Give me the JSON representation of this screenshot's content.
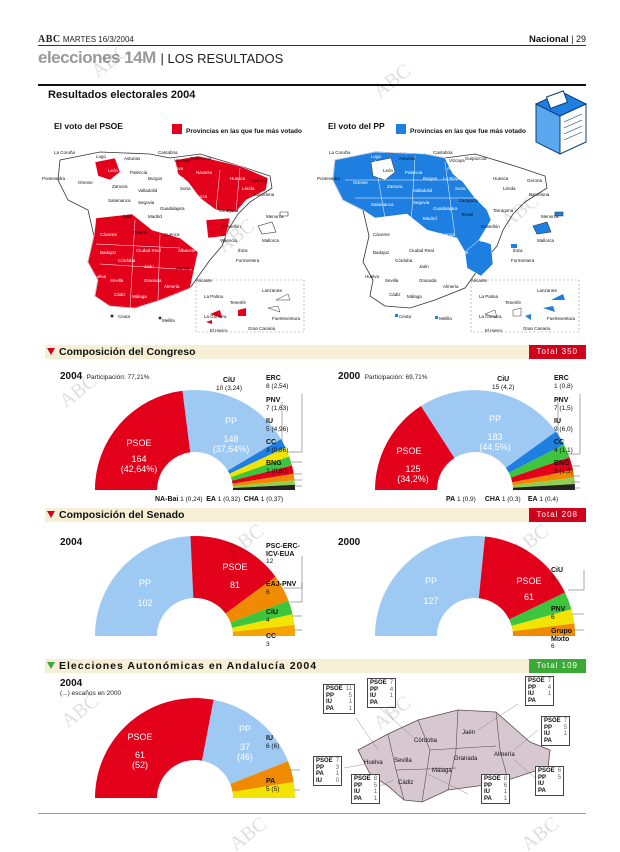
{
  "header": {
    "paper": "ABC",
    "date": "MARTES 16/3/2004",
    "section": "Nacional",
    "page": "29"
  },
  "section_title": {
    "keyword": "elecciones 14M",
    "rest": "LOS RESULTADOS"
  },
  "main_title": "Resultados electorales 2004",
  "maps": {
    "psoe": {
      "title": "El voto del PSOE",
      "legend": "Provincias en las que fue más votado",
      "color": "#e3001b"
    },
    "pp": {
      "title": "El voto del PP",
      "legend": "Provincias en las que fue más votado",
      "color": "#1e7fe0"
    },
    "places_psoe": [
      "La Coruña",
      "Lugo",
      "Asturias",
      "Cantabria",
      "Vizcaya",
      "Guipúzcoa",
      "Pontevedra",
      "Orense",
      "León",
      "Palencia",
      "Burgos",
      "Álava",
      "La Rioja",
      "Navarra",
      "Huesca",
      "Gerona",
      "Lérida",
      "Zamora",
      "Valladolid",
      "Soria",
      "Zaragoza",
      "Barcelona",
      "Tarragona",
      "Salamanca",
      "Segovia",
      "Ávila",
      "Guadalajara",
      "Madrid",
      "Teruel",
      "Castellón",
      "Cáceres",
      "Toledo",
      "Cuenca",
      "Valencia",
      "Menorca",
      "Mallorca",
      "Badajoz",
      "Ciudad Real",
      "Albacete",
      "Ibiza",
      "Formentera",
      "Huelva",
      "Córdoba",
      "Jaén",
      "Murcia",
      "Alicante",
      "Sevilla",
      "Granada",
      "Almería",
      "Cádiz",
      "Málaga",
      "Ceuta",
      "Melilla",
      "La Palma",
      "Tenerife",
      "Lanzarote",
      "Fuerteventura",
      "La Gomera",
      "El Hierro",
      "Gran Canaria"
    ],
    "places_pp": [
      "La Coruña",
      "Lugo",
      "Asturias",
      "Cantabria",
      "Vizcaya",
      "Guipúzcoa",
      "Pontevedra",
      "Orense",
      "León",
      "Palencia",
      "Burgos",
      "Álava",
      "La Rioja",
      "Navarra",
      "Huesca",
      "Gerona",
      "Lérida",
      "Zamora",
      "Valladolid",
      "Soria",
      "Zaragoza",
      "Barcelona",
      "Tarragona",
      "Salamanca",
      "Segovia",
      "Ávila",
      "Guadalajara",
      "Madrid",
      "Teruel",
      "Castellón",
      "Cáceres",
      "Toledo",
      "Cuenca",
      "Valencia",
      "Menorca",
      "Mallorca",
      "Badajoz",
      "Ciudad Real",
      "Albacete",
      "Ibiza",
      "Formentera",
      "Huelva",
      "Córdoba",
      "Jaén",
      "Murcia",
      "Alicante",
      "Sevilla",
      "Granada",
      "Almería",
      "Cádiz",
      "Málaga",
      "Ceuta",
      "Melilla",
      "La Palma",
      "Tenerife",
      "Lanzarote",
      "Fuerteventura",
      "La Gomera",
      "El Hierro",
      "Gran Canaria"
    ]
  },
  "congreso": {
    "title": "Composición del Congreso",
    "total": "Total 350",
    "y2004": {
      "year": "2004",
      "participation": "Participación: 77,21%",
      "psoe_name": "PSOE",
      "psoe_seats": "164",
      "psoe_pct": "(42,64%)",
      "pp_name": "PP",
      "pp_seats": "148",
      "pp_pct": "(37,64%)",
      "labels_right": [
        {
          "name": "CiU",
          "val": "10 (3,24)"
        },
        {
          "name": "ERC",
          "val": "8 (2,54)"
        },
        {
          "name": "PNV",
          "val": "7 (1,63)"
        },
        {
          "name": "IU",
          "val": "5 (4,96)"
        },
        {
          "name": "CC",
          "val": "3 (0,86)"
        },
        {
          "name": "BNG",
          "val": "2 (0,80)"
        }
      ],
      "labels_bottom": [
        {
          "name": "NA-Bai",
          "val": "1 (0,24)"
        },
        {
          "name": "EA",
          "val": "1 (0,32)"
        },
        {
          "name": "CHA",
          "val": "1 (0,37)"
        }
      ]
    },
    "y2000": {
      "year": "2000",
      "participation": "Participación: 69,71%",
      "psoe_name": "PSOE",
      "psoe_seats": "125",
      "psoe_pct": "(34,2%)",
      "pp_name": "PP",
      "pp_seats": "183",
      "pp_pct": "(44,5%)",
      "labels_right": [
        {
          "name": "CiU",
          "val": "15 (4,2)"
        },
        {
          "name": "ERC",
          "val": "1 (0,8)"
        },
        {
          "name": "PNV",
          "val": "7 (1,5)"
        },
        {
          "name": "IU",
          "val": "9 (6,0)"
        },
        {
          "name": "CC",
          "val": "4 (1,1)"
        },
        {
          "name": "BNG",
          "val": "3 (1,3)"
        }
      ],
      "labels_bottom": [
        {
          "name": "PA",
          "val": "1 (0,9)"
        },
        {
          "name": "CHA",
          "val": "1 (0,3)"
        },
        {
          "name": "EA",
          "val": "1 (0,4)"
        }
      ]
    }
  },
  "senado": {
    "title": "Composición del Senado",
    "total": "Total 208",
    "y2004": {
      "year": "2004",
      "pp_name": "PP",
      "pp_seats": "102",
      "psoe_name": "PSOE",
      "psoe_seats": "81",
      "labels": [
        {
          "name": "PSC-ERC-ICV-EUA",
          "val": "12"
        },
        {
          "name": "EAJ-PNV",
          "val": "6"
        },
        {
          "name": "CiU",
          "val": "4"
        },
        {
          "name": "CC",
          "val": "3"
        }
      ]
    },
    "y2000": {
      "year": "2000",
      "pp_name": "PP",
      "pp_seats": "127",
      "psoe_name": "PSOE",
      "psoe_seats": "61",
      "labels": [
        {
          "name": "CiU",
          "val": "8"
        },
        {
          "name": "PNV",
          "val": "6"
        },
        {
          "name": "Grupo Mixto",
          "val": "6"
        }
      ]
    }
  },
  "andalucia": {
    "title": "Elecciones Autonómicas en Andalucía 2004",
    "total": "Total 109",
    "year": "2004",
    "note": "(...) escaños en 2000",
    "psoe_name": "PSOE",
    "psoe_seats": "61",
    "psoe_prev": "(52)",
    "pp_name": "PP",
    "pp_seats": "37",
    "pp_prev": "(46)",
    "labels": [
      {
        "name": "IU",
        "val": "6 (6)"
      },
      {
        "name": "PA",
        "val": "5 (5)"
      }
    ],
    "provinces": [
      "Córdoba",
      "Jaén",
      "Huelva",
      "Sevilla",
      "Granada",
      "Almería",
      "Málaga",
      "Cádiz"
    ],
    "boxes": {
      "huelva_top": [
        [
          "PSOE",
          "11"
        ],
        [
          "PP",
          "5"
        ],
        [
          "IU",
          "1"
        ],
        [
          "PA",
          "1"
        ]
      ],
      "cordoba": [
        [
          "PSOE",
          "7"
        ],
        [
          "PP",
          "4"
        ],
        [
          "IU",
          "1"
        ],
        [
          "PA",
          ""
        ]
      ],
      "jaen": [
        [
          "PSOE",
          "7"
        ],
        [
          "PP",
          "4"
        ],
        [
          "IU",
          "1"
        ],
        [
          "PA",
          ""
        ]
      ],
      "granada": [
        [
          "PSOE",
          "7"
        ],
        [
          "PP",
          "5"
        ],
        [
          "IU",
          "1"
        ],
        [
          "PA",
          ""
        ]
      ],
      "almeria": [
        [
          "PSOE",
          "6"
        ],
        [
          "PP",
          "5"
        ],
        [
          "IU",
          ""
        ],
        [
          "PA",
          ""
        ]
      ],
      "huelva": [
        [
          "PSOE",
          "7"
        ],
        [
          "PP",
          "3"
        ],
        [
          "PA",
          "1"
        ],
        [
          "IU",
          "0"
        ]
      ],
      "sevilla": [
        [
          "PSOE",
          "8"
        ],
        [
          "PP",
          "5"
        ],
        [
          "IU",
          "1"
        ],
        [
          "PA",
          "1"
        ]
      ],
      "cadiz": [
        [
          "PSOE",
          "8"
        ],
        [
          "PP",
          "6"
        ],
        [
          "IU",
          "1"
        ],
        [
          "PA",
          "1"
        ]
      ]
    }
  },
  "watermark": "ABC"
}
